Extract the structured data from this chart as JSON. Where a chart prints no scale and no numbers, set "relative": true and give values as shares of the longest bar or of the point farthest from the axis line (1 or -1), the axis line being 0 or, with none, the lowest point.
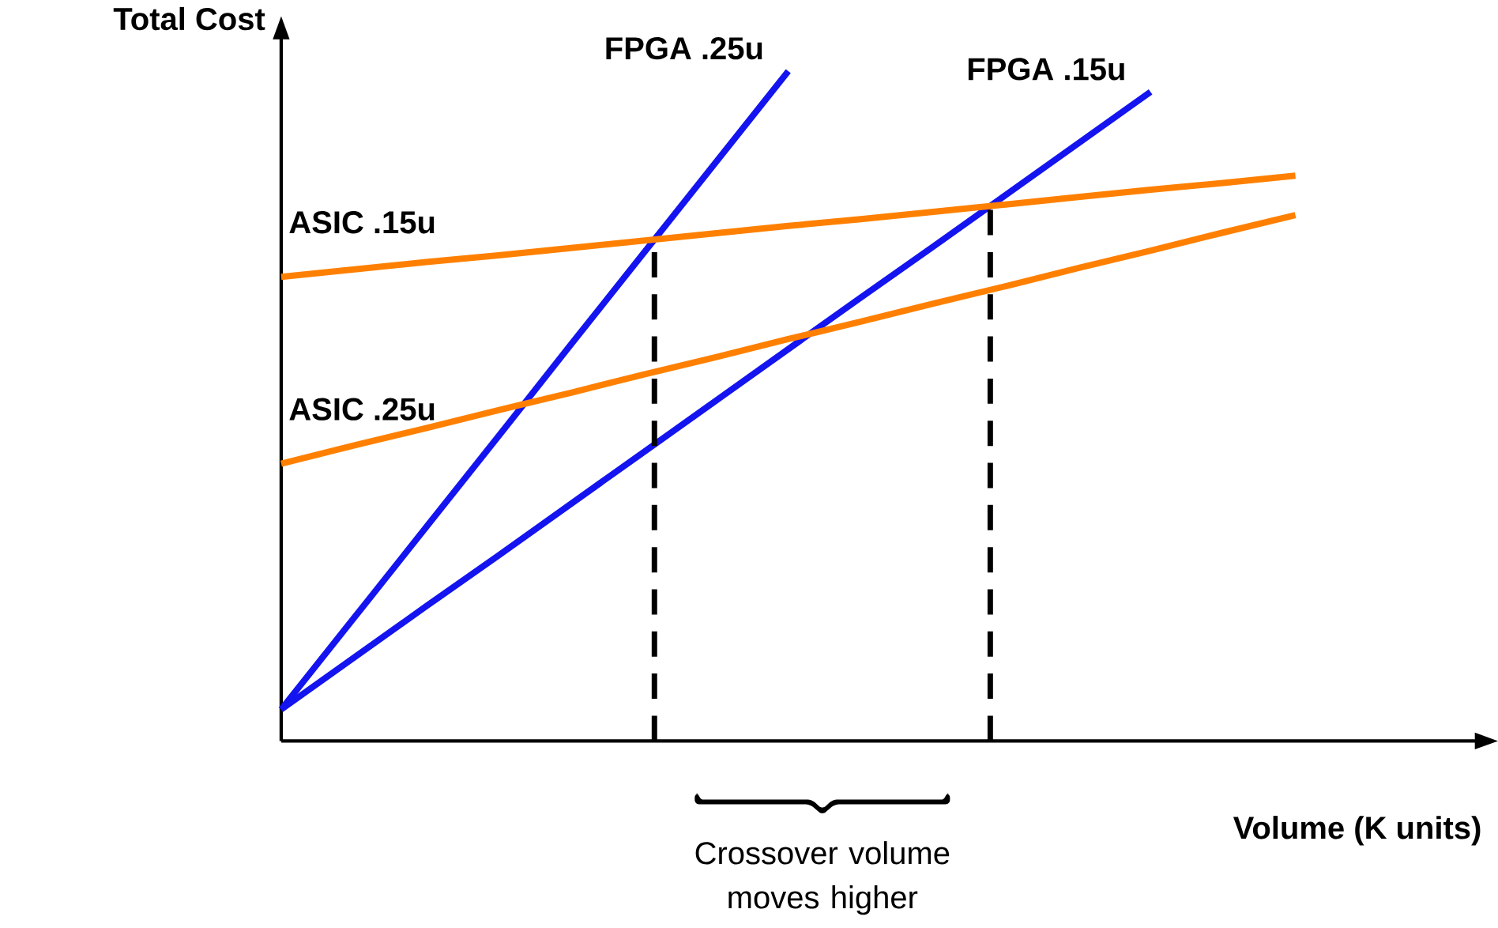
{
  "chart_data": {
    "type": "line",
    "relative": true,
    "xlabel": "Volume (K units)",
    "ylabel": "Total Cost",
    "categories": [
      null,
      null,
      null,
      null,
      null,
      null,
      null,
      null,
      null,
      null,
      null,
      null,
      null,
      null,
      null
    ],
    "series": [
      {
        "name": "FPGA .25u",
        "color": "#1414f0",
        "values": [
          0.047,
          0.183,
          0.319,
          0.455,
          0.592,
          0.728,
          0.864,
          1.0,
          null,
          null,
          null,
          null,
          null,
          null,
          null
        ]
      },
      {
        "name": "FPGA .15u",
        "color": "#1414f0",
        "values": [
          0.047,
          0.124,
          0.201,
          0.277,
          0.354,
          0.431,
          0.508,
          0.585,
          0.662,
          0.738,
          0.815,
          0.892,
          0.969,
          null,
          null
        ]
      },
      {
        "name": "ASIC .15u",
        "color": "#ff8000",
        "values": [
          0.693,
          0.704,
          0.715,
          0.725,
          0.736,
          0.747,
          0.758,
          0.769,
          0.779,
          0.79,
          0.801,
          0.812,
          0.823,
          0.833,
          0.844
        ]
      },
      {
        "name": "ASIC .25u",
        "color": "#ff8000",
        "values": [
          0.414,
          0.441,
          0.467,
          0.494,
          0.52,
          0.547,
          0.573,
          0.6,
          0.626,
          0.653,
          0.679,
          0.706,
          0.732,
          0.759,
          0.785
        ]
      }
    ],
    "annotations": [
      "Crossover volume moves higher"
    ],
    "marker": "none",
    "line_style": "solid"
  }
}
